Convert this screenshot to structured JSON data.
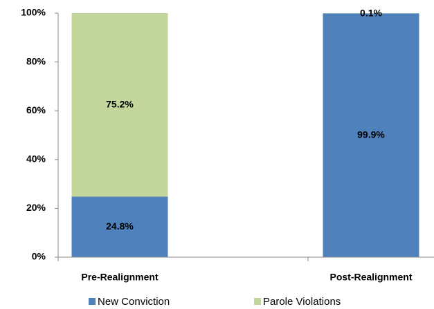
{
  "chart_data": {
    "type": "stacked_bar",
    "categories": [
      "Pre-Realignment",
      "Post-Realignment"
    ],
    "series": [
      {
        "name": "New Conviction",
        "color": "#4f81bd",
        "values": [
          24.8,
          99.9
        ],
        "value_labels": [
          "24.8%",
          "99.9%"
        ]
      },
      {
        "name": "Parole Violations",
        "color": "#c3d69b",
        "values": [
          75.2,
          0.1
        ],
        "value_labels": [
          "75.2%",
          "0.1%"
        ]
      }
    ],
    "ylim": [
      0,
      100
    ],
    "yticks": [
      {
        "value": 0,
        "label": "0%"
      },
      {
        "value": 20,
        "label": "20%"
      },
      {
        "value": 40,
        "label": "40%"
      },
      {
        "value": 60,
        "label": "60%"
      },
      {
        "value": 80,
        "label": "80%"
      },
      {
        "value": 100,
        "label": "100%"
      }
    ],
    "grid": false
  }
}
